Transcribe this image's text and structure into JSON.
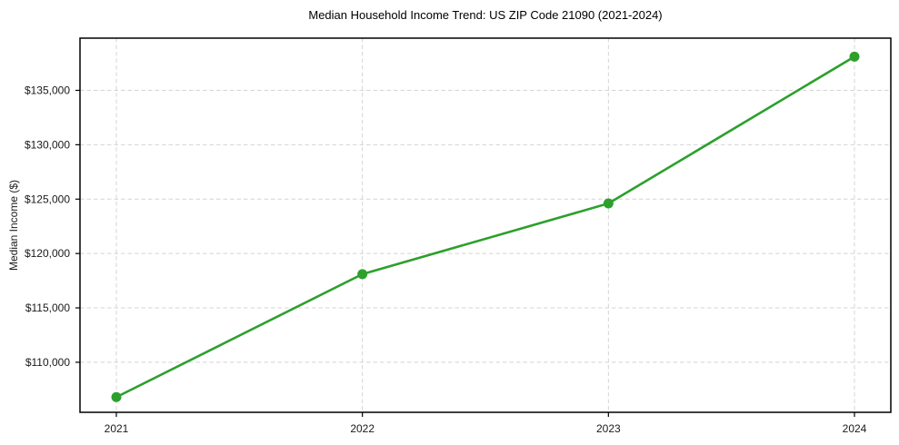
{
  "chart_data": {
    "type": "line",
    "title": "Median Household Income Trend: US ZIP Code 21090 (2021-2024)",
    "xlabel": "",
    "ylabel": "Median Income ($)",
    "categories": [
      "2021",
      "2022",
      "2023",
      "2024"
    ],
    "values": [
      106800,
      118100,
      124600,
      138100
    ],
    "ylim": [
      105400,
      139800
    ],
    "yticks": [
      110000,
      115000,
      120000,
      125000,
      130000,
      135000
    ],
    "ytick_labels": [
      "$110,000",
      "$115,000",
      "$120,000",
      "$125,000",
      "$130,000",
      "$135,000"
    ],
    "grid": true,
    "grid_style": "dashed",
    "legend": "none",
    "marker": "circle",
    "colors": {
      "line": "#2ca02c",
      "marker": "#2ca02c",
      "grid": "#d4d4d4",
      "axis": "#000000",
      "text": "#1a1a1a",
      "background": "#ffffff"
    }
  }
}
